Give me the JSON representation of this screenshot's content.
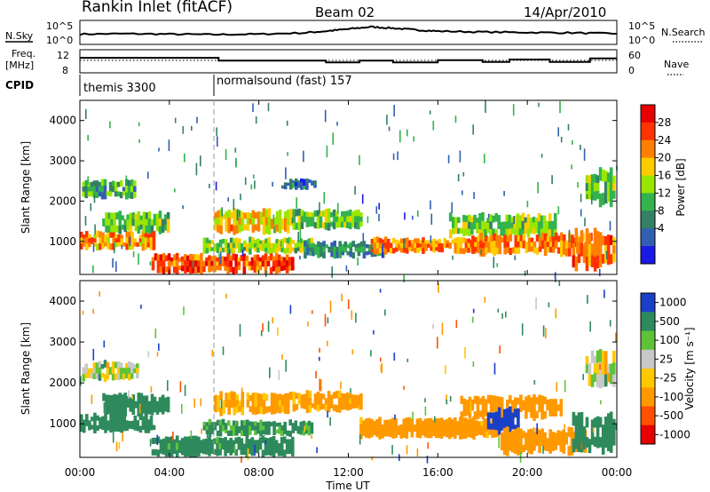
{
  "header": {
    "title": "Rankin Inlet (fitACF)",
    "beam": "Beam 02",
    "date": "14/Apr/2010"
  },
  "strip_labels": {
    "nsky": "N.Sky",
    "nsearch": "N.Search",
    "freq_line1": "Freq.",
    "freq_line2": "[MHz]",
    "nave": "Nave",
    "cpid": "CPID",
    "nsky_top": "10^5",
    "nsky_bottom": "10^0",
    "nsearch_top": "10^5",
    "nsearch_bottom": "10^0",
    "freq_top": "12",
    "freq_bottom": "8",
    "nave_top": "60",
    "nave_bottom": "0"
  },
  "cpid_segments": [
    {
      "label": "themis 3300",
      "start_hour": 0
    },
    {
      "label": "normalsound (fast) 157",
      "start_hour": 6.0
    }
  ],
  "colorbars": {
    "power": {
      "label": "Power [dB]",
      "ticks": [
        "28",
        "24",
        "20",
        "16",
        "12",
        "8",
        "4"
      ],
      "colors": [
        "#e60000",
        "#ff3300",
        "#ff8000",
        "#ffcc00",
        "#99e600",
        "#33b34d",
        "#338066",
        "#335fb3",
        "#1a1ae6"
      ]
    },
    "velocity": {
      "label": "Velocity [m s⁻¹]",
      "ticks": [
        "1000",
        "500",
        "100",
        "25",
        "-25",
        "-100",
        "-500",
        "-1000"
      ],
      "colors": [
        "#1a40c8",
        "#2e8a5c",
        "#5fc33a",
        "#c8c8c8",
        "#ffc800",
        "#ff9900",
        "#ff5000",
        "#e60000"
      ]
    }
  },
  "axes": {
    "ylabel": "Slant Range [km]",
    "yticks": [
      "1000",
      "2000",
      "3000",
      "4000"
    ],
    "xlabel": "Time UT",
    "xticks": [
      "00:00",
      "04:00",
      "08:00",
      "12:00",
      "16:00",
      "20:00",
      "00:00"
    ]
  },
  "chart_data": [
    {
      "type": "line",
      "name": "noise strip",
      "x_range": [
        0,
        24
      ],
      "series": [
        {
          "name": "N.Sky",
          "x": [
            0,
            2,
            4,
            6,
            8,
            10,
            11,
            12,
            13,
            14,
            15,
            16,
            18,
            20,
            22,
            24
          ],
          "y": [
            2.2,
            2.3,
            2.2,
            2.1,
            2.2,
            2.5,
            2.9,
            3.4,
            3.9,
            3.6,
            3.2,
            2.9,
            2.7,
            2.6,
            2.5,
            2.3
          ]
        },
        {
          "name": "Freq",
          "x": [
            0,
            6.2,
            6.2,
            11.0,
            11.0,
            12.5,
            12.5,
            14.0,
            14.0,
            16.0,
            16.0,
            18.0,
            18.0,
            19.2,
            19.2,
            21.0,
            21.0,
            22.8,
            22.8,
            24
          ],
          "y": [
            10.6,
            10.6,
            10.1,
            10.1,
            9.8,
            9.8,
            10.1,
            10.1,
            9.8,
            9.8,
            10.2,
            10.2,
            9.9,
            9.9,
            10.3,
            10.3,
            9.9,
            9.9,
            10.5,
            10.5
          ]
        }
      ],
      "ylim_freq": [
        8,
        12
      ],
      "nave_ylim": [
        0,
        60
      ]
    },
    {
      "type": "heatmap",
      "name": "power",
      "xlabel": "Time UT",
      "ylabel": "Slant Range [km]",
      "xlim_hours": [
        0,
        24
      ],
      "ylim_km": [
        180,
        4500
      ],
      "clim_db": [
        0,
        32
      ],
      "regions": [
        {
          "t": [
            0.1,
            2.4
          ],
          "r": [
            2050,
            2550
          ],
          "value": 11
        },
        {
          "t": [
            0.0,
            3.3
          ],
          "r": [
            800,
            1250
          ],
          "value": 22
        },
        {
          "t": [
            1.0,
            4.0
          ],
          "r": [
            1200,
            1750
          ],
          "value": 14
        },
        {
          "t": [
            3.2,
            9.5
          ],
          "r": [
            200,
            700
          ],
          "value": 26
        },
        {
          "t": [
            5.5,
            10.3
          ],
          "r": [
            700,
            1100
          ],
          "value": 15
        },
        {
          "t": [
            6.0,
            9.4
          ],
          "r": [
            1200,
            1800
          ],
          "value": 20
        },
        {
          "t": [
            9.5,
            12.6
          ],
          "r": [
            1300,
            1800
          ],
          "value": 14
        },
        {
          "t": [
            10.0,
            13.5
          ],
          "r": [
            600,
            1000
          ],
          "value": 9
        },
        {
          "t": [
            13.0,
            18.5
          ],
          "r": [
            700,
            1100
          ],
          "value": 23
        },
        {
          "t": [
            16.5,
            21.2
          ],
          "r": [
            1100,
            1700
          ],
          "value": 15
        },
        {
          "t": [
            17.5,
            22.8
          ],
          "r": [
            650,
            1200
          ],
          "value": 23
        },
        {
          "t": [
            22.0,
            23.9
          ],
          "r": [
            300,
            1300
          ],
          "value": 24
        },
        {
          "t": [
            22.6,
            23.9
          ],
          "r": [
            1900,
            2800
          ],
          "value": 14
        },
        {
          "t": [
            9.0,
            10.5
          ],
          "r": [
            2300,
            2550
          ],
          "value": 7
        }
      ]
    },
    {
      "type": "heatmap",
      "name": "velocity",
      "xlabel": "Time UT",
      "ylabel": "Slant Range [km]",
      "xlim_hours": [
        0,
        24
      ],
      "ylim_km": [
        180,
        4500
      ],
      "clim_ms": [
        -1000,
        1000
      ],
      "regions": [
        {
          "t": [
            0.1,
            2.6
          ],
          "r": [
            2050,
            2550
          ],
          "value": 0
        },
        {
          "t": [
            0.0,
            3.3
          ],
          "r": [
            800,
            1250
          ],
          "value": 300
        },
        {
          "t": [
            1.0,
            4.0
          ],
          "r": [
            1200,
            1750
          ],
          "value": 250
        },
        {
          "t": [
            3.2,
            9.5
          ],
          "r": [
            200,
            700
          ],
          "value": 200
        },
        {
          "t": [
            5.5,
            10.3
          ],
          "r": [
            700,
            1100
          ],
          "value": 150
        },
        {
          "t": [
            6.0,
            9.4
          ],
          "r": [
            1200,
            1800
          ],
          "value": -150
        },
        {
          "t": [
            9.5,
            12.6
          ],
          "r": [
            1300,
            1800
          ],
          "value": -180
        },
        {
          "t": [
            12.5,
            18.8
          ],
          "r": [
            650,
            1150
          ],
          "value": -200
        },
        {
          "t": [
            17.0,
            21.5
          ],
          "r": [
            1100,
            1700
          ],
          "value": -300
        },
        {
          "t": [
            18.2,
            19.6
          ],
          "r": [
            750,
            1400
          ],
          "value": 700
        },
        {
          "t": [
            18.8,
            22.6
          ],
          "r": [
            250,
            900
          ],
          "value": -250
        },
        {
          "t": [
            22.0,
            23.9
          ],
          "r": [
            300,
            1300
          ],
          "value": 300
        },
        {
          "t": [
            22.6,
            23.9
          ],
          "r": [
            1900,
            2800
          ],
          "value": 0
        }
      ]
    }
  ]
}
